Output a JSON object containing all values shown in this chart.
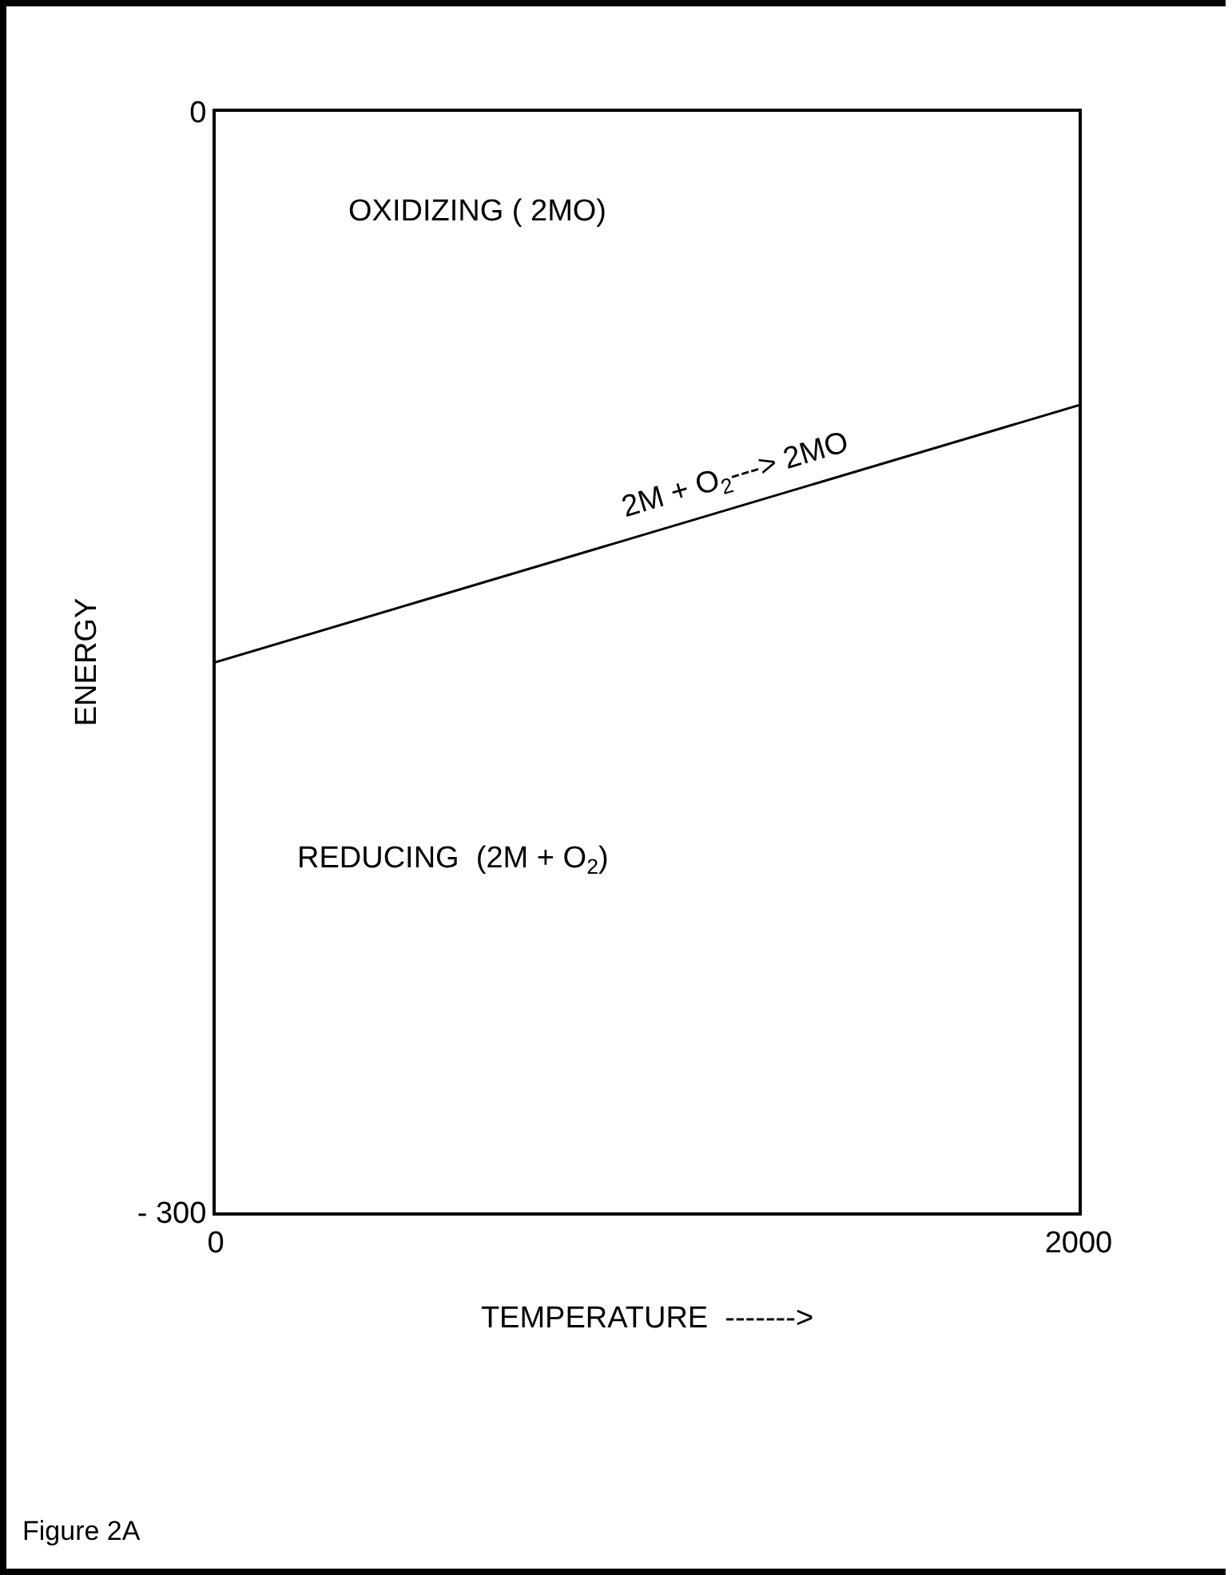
{
  "chart_data": {
    "type": "line",
    "xlabel": "TEMPERATURE  ------->",
    "ylabel": "ENERGY",
    "x": [
      0,
      2000
    ],
    "series": [
      {
        "name": "2M + O$_{2}$---> 2MO",
        "color": "#000000",
        "values": [
          -150,
          -80
        ]
      }
    ],
    "xlim": [
      0,
      2000
    ],
    "xticks": [
      0,
      2000
    ],
    "ylim": [
      -300,
      0
    ],
    "yticks": [
      {
        "value": -300,
        "label": "- 300"
      },
      0
    ],
    "annotations": [
      "OXIDIZING ( 2MO)",
      "REDUCING  (2M + O$_{2}$)",
      "Figure 2A"
    ]
  }
}
